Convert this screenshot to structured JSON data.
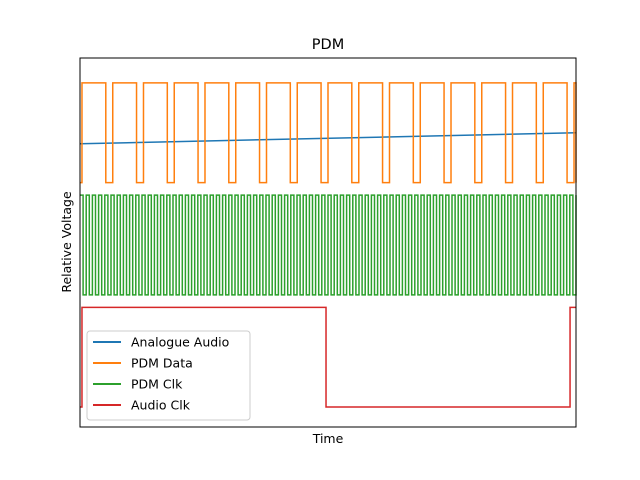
{
  "chart_data": {
    "type": "line",
    "title": "PDM",
    "xlabel": "Time",
    "ylabel": "Relative Voltage",
    "xticks": [],
    "yticks": [],
    "grid": false,
    "legend_position": "lower-left",
    "xlim": [
      0,
      1
    ],
    "ylim": [
      -4.9,
      2.5
    ],
    "series": [
      {
        "name": "Analogue Audio",
        "color": "#1f77b4",
        "kind": "line",
        "x": [
          0,
          1
        ],
        "y": [
          0.78,
          1.0
        ]
      },
      {
        "name": "PDM Data",
        "color": "#ff7f0e",
        "kind": "step",
        "x": [
          0,
          0.004,
          0.052,
          0.066,
          0.114,
          0.128,
          0.176,
          0.19,
          0.238,
          0.252,
          0.3,
          0.314,
          0.362,
          0.376,
          0.424,
          0.438,
          0.486,
          0.5,
          0.548,
          0.562,
          0.61,
          0.624,
          0.672,
          0.686,
          0.734,
          0.748,
          0.796,
          0.81,
          0.858,
          0.872,
          0.92,
          0.934,
          0.982,
          0.996,
          1
        ],
        "y": [
          0,
          2,
          0,
          2,
          0,
          2,
          0,
          2,
          0,
          2,
          0,
          2,
          0,
          2,
          0,
          2,
          0,
          2,
          0,
          2,
          0,
          2,
          0,
          2,
          0,
          2,
          0,
          2,
          0,
          2,
          0,
          2,
          0,
          2,
          0
        ]
      },
      {
        "name": "PDM Clk",
        "color": "#2ca02c",
        "kind": "square",
        "x_range": [
          0,
          1
        ],
        "period": 0.0125,
        "low": -2.25,
        "high": -0.25
      },
      {
        "name": "Audio Clk",
        "color": "#d62728",
        "kind": "step",
        "x": [
          0,
          0.004,
          0.496,
          0.988,
          1
        ],
        "y": [
          -4.5,
          -2.5,
          -4.5,
          -2.5,
          -2.5
        ]
      }
    ]
  }
}
